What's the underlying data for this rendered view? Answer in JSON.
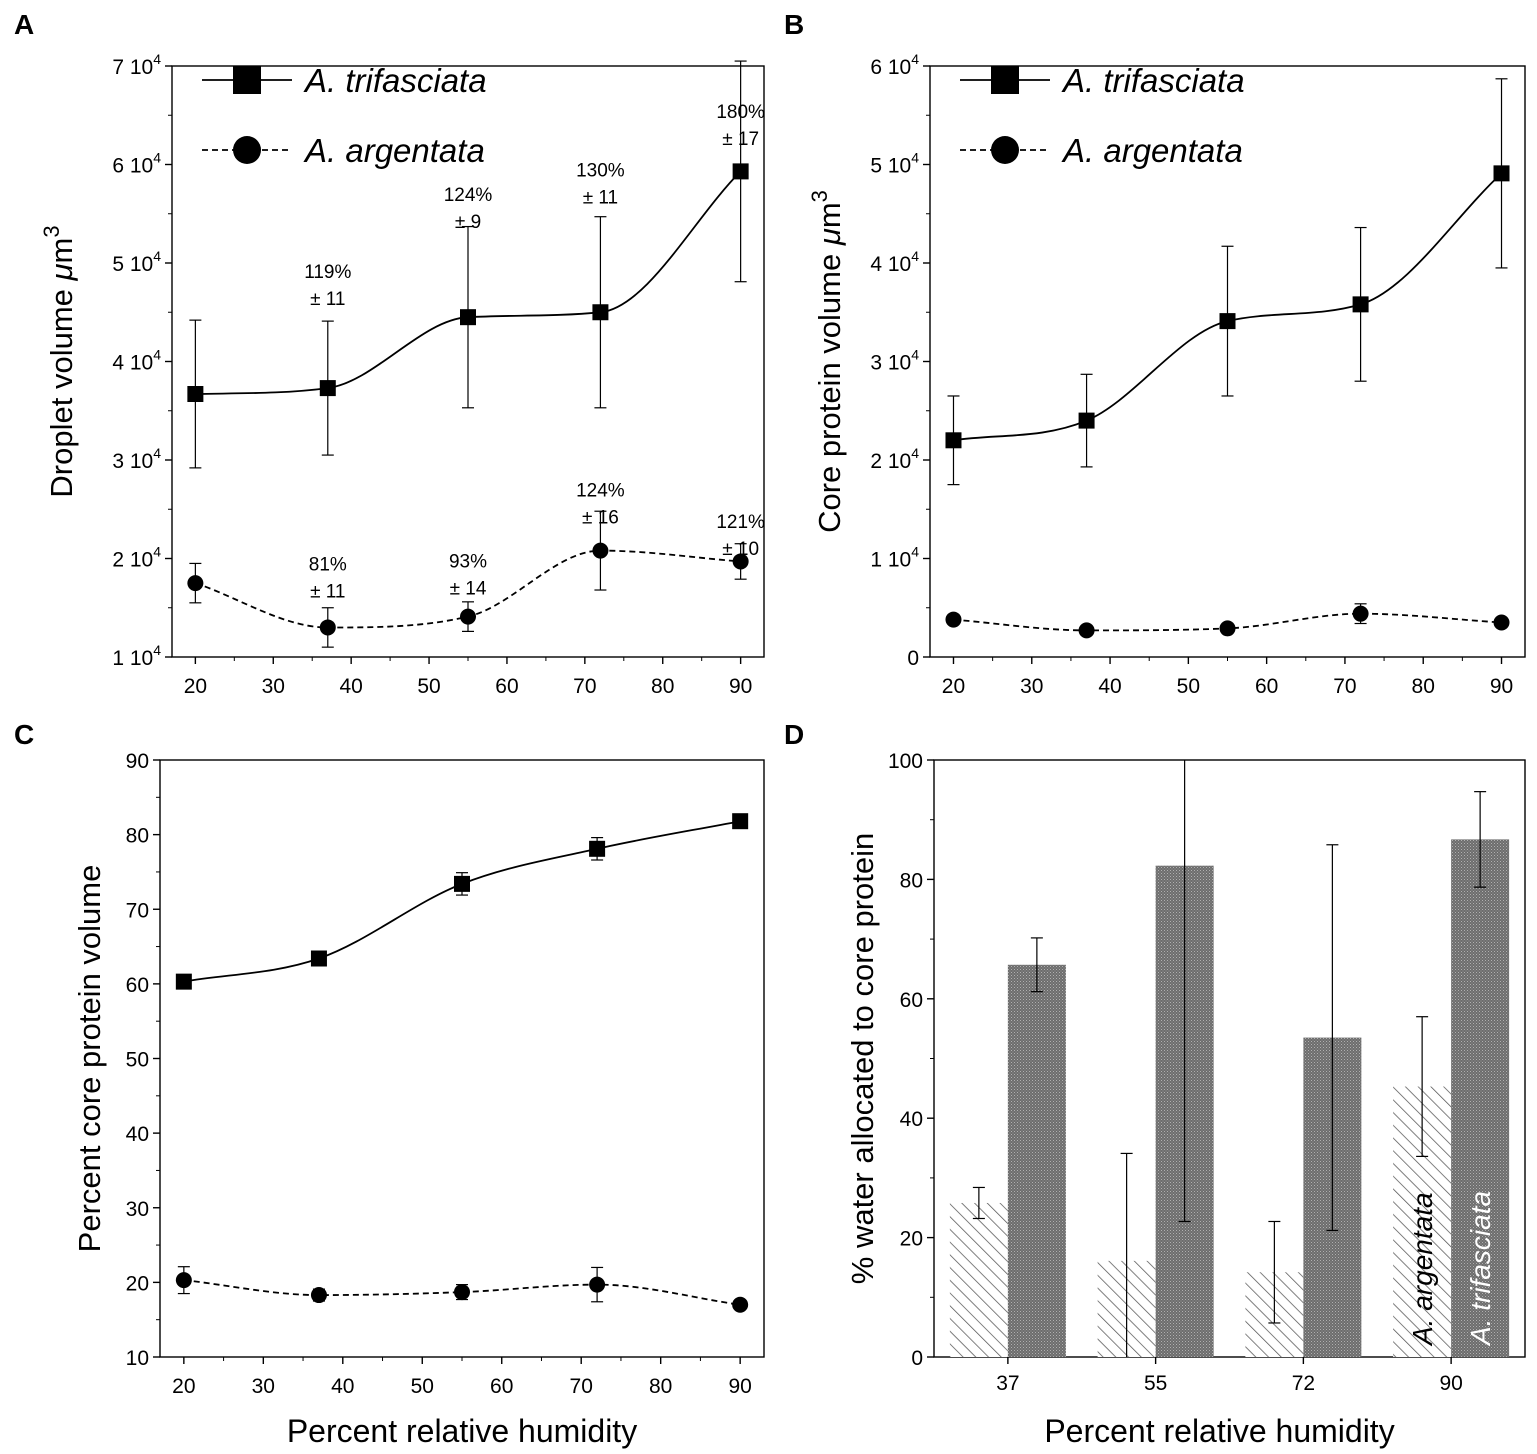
{
  "colors": {
    "line": "#000000",
    "bar_trifasciata": "#7a7a7a",
    "bar_argentata_hatch": "#555555",
    "bar_label_light": "#ffffff"
  },
  "chart_data": [
    {
      "panel": "A",
      "type": "line",
      "ylabel": "Droplet volume μm3",
      "xlabel": "",
      "xlim": [
        17,
        93
      ],
      "ylim": [
        10000,
        70000
      ],
      "xticks": [
        "20",
        "30",
        "40",
        "50",
        "60",
        "70",
        "80",
        "90"
      ],
      "xtick_values": [
        20,
        30,
        40,
        50,
        60,
        70,
        80,
        90
      ],
      "yticks": [
        "1 10^4",
        "2 10^4",
        "3 10^4",
        "4 10^4",
        "5 10^4",
        "6 10^4",
        "7 10^4"
      ],
      "ytick_values": [
        10000,
        20000,
        30000,
        40000,
        50000,
        60000,
        70000
      ],
      "legend_position": "top-left",
      "series": [
        {
          "name": "A. trifasciata",
          "marker": "square",
          "dash": "solid",
          "x": [
            20,
            37,
            55,
            72,
            90
          ],
          "values": [
            36700,
            37300,
            44500,
            45000,
            59300
          ],
          "err": [
            7500,
            6800,
            9200,
            9700,
            11200
          ]
        },
        {
          "name": "A. argentata",
          "marker": "circle",
          "dash": "dashed",
          "x": [
            20,
            37,
            55,
            72,
            90
          ],
          "values": [
            17500,
            13000,
            14100,
            20800,
            19700
          ],
          "err": [
            2000,
            2000,
            1500,
            4000,
            1800
          ]
        }
      ],
      "annotations": [
        {
          "pct": "119%",
          "pm": "± 11",
          "x": 37,
          "y": 48500
        },
        {
          "pct": "124%",
          "pm": "± 9",
          "x": 55,
          "y": 56300
        },
        {
          "pct": "130%",
          "pm": "± 11",
          "x": 72,
          "y": 58800
        },
        {
          "pct": "180%",
          "pm": "± 17",
          "x": 90,
          "y": 64700
        },
        {
          "pct": "81%",
          "pm": "± 11",
          "x": 37,
          "y": 18800
        },
        {
          "pct": "93%",
          "pm": "± 14",
          "x": 55,
          "y": 19100
        },
        {
          "pct": "124%",
          "pm": "± 16",
          "x": 72,
          "y": 26300
        },
        {
          "pct": "121%",
          "pm": "± 10",
          "x": 90,
          "y": 23100
        }
      ]
    },
    {
      "panel": "B",
      "type": "line",
      "ylabel": "Core protein volume μm3",
      "xlabel": "",
      "xlim": [
        17,
        93
      ],
      "ylim": [
        0,
        60000
      ],
      "xticks": [
        "20",
        "30",
        "40",
        "50",
        "60",
        "70",
        "80",
        "90"
      ],
      "xtick_values": [
        20,
        30,
        40,
        50,
        60,
        70,
        80,
        90
      ],
      "yticks": [
        "0",
        "1 10^4",
        "2 10^4",
        "3 10^4",
        "4 10^4",
        "5 10^4",
        "6 10^4"
      ],
      "ytick_values": [
        0,
        10000,
        20000,
        30000,
        40000,
        50000,
        60000
      ],
      "legend_position": "top-left",
      "series": [
        {
          "name": "A. trifasciata",
          "marker": "square",
          "dash": "solid",
          "x": [
            20,
            37,
            55,
            72,
            90
          ],
          "values": [
            22000,
            24000,
            34100,
            35800,
            49100
          ],
          "err": [
            4500,
            4700,
            7600,
            7800,
            9600
          ]
        },
        {
          "name": "A. argentata",
          "marker": "circle",
          "dash": "dashed",
          "x": [
            20,
            37,
            55,
            72,
            90
          ],
          "values": [
            3800,
            2700,
            2900,
            4400,
            3500
          ],
          "err": [
            400,
            400,
            400,
            1000,
            400
          ]
        }
      ]
    },
    {
      "panel": "C",
      "type": "line",
      "ylabel": "Percent core protein volume",
      "xlabel": "Percent relative humidity",
      "xlim": [
        17,
        93
      ],
      "ylim": [
        10,
        90
      ],
      "xticks": [
        "20",
        "30",
        "40",
        "50",
        "60",
        "70",
        "80",
        "90"
      ],
      "xtick_values": [
        20,
        30,
        40,
        50,
        60,
        70,
        80,
        90
      ],
      "yticks": [
        "10",
        "20",
        "30",
        "40",
        "50",
        "60",
        "70",
        "80",
        "90"
      ],
      "ytick_values": [
        10,
        20,
        30,
        40,
        50,
        60,
        70,
        80,
        90
      ],
      "series": [
        {
          "name": "A. trifasciata",
          "marker": "square",
          "dash": "solid",
          "x": [
            20,
            37,
            55,
            72,
            90
          ],
          "values": [
            60.3,
            63.4,
            73.4,
            78.1,
            81.8
          ],
          "err": [
            0.4,
            0.4,
            1.5,
            1.5,
            0.3
          ]
        },
        {
          "name": "A. argentata",
          "marker": "circle",
          "dash": "dashed",
          "x": [
            20,
            37,
            55,
            72,
            90
          ],
          "values": [
            20.3,
            18.3,
            18.7,
            19.7,
            17.0
          ],
          "err": [
            1.8,
            0.8,
            1.0,
            2.3,
            0.4
          ]
        }
      ]
    },
    {
      "panel": "D",
      "type": "bar",
      "ylabel": "% water allocated to core protein",
      "xlabel": "Percent relative humidity",
      "categories": [
        "37",
        "55",
        "72",
        "90"
      ],
      "ylim": [
        0,
        100
      ],
      "yticks": [
        "0",
        "20",
        "40",
        "60",
        "80",
        "100"
      ],
      "ytick_values": [
        0,
        20,
        40,
        60,
        80,
        100
      ],
      "series": [
        {
          "name": "A. argentata",
          "fill": "hatched",
          "values": [
            25.8,
            16.1,
            14.2,
            45.3
          ],
          "err": [
            2.6,
            18.0,
            8.5,
            11.7
          ]
        },
        {
          "name": "A. trifasciata",
          "fill": "stippled",
          "values": [
            65.7,
            82.3,
            53.5,
            86.7
          ],
          "err": [
            4.5,
            59.6,
            32.3,
            8.0
          ]
        }
      ],
      "bar_labels": [
        "A. argentata",
        "A. trifasciata"
      ]
    }
  ],
  "panel_letters": [
    "A",
    "B",
    "C",
    "D"
  ]
}
